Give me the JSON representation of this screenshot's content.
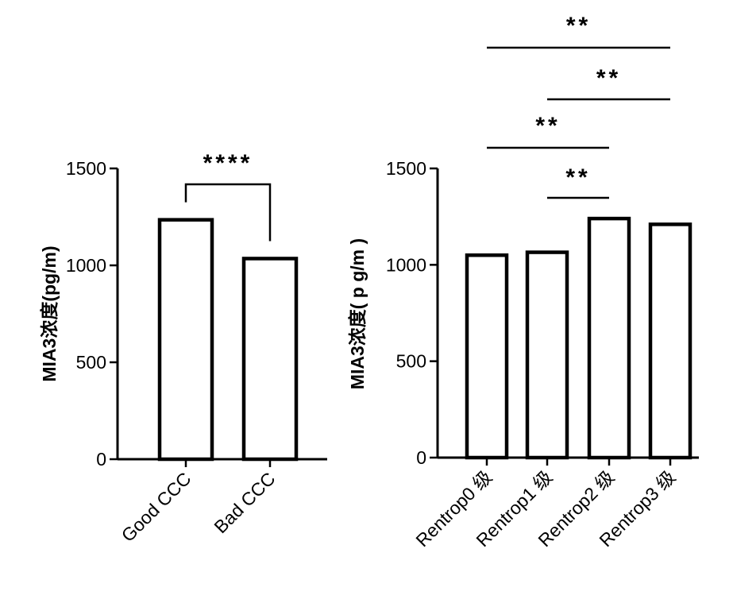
{
  "chart_data": [
    {
      "type": "bar",
      "categories": [
        "Good CCC",
        "Bad CCC"
      ],
      "values": [
        1235,
        1035
      ],
      "ylabel": "MIA3浓度(pg/m)",
      "ylim": [
        0,
        1500
      ],
      "yticks": [
        0,
        500,
        1000,
        1500
      ],
      "significance": [
        {
          "from": 0,
          "to": 1,
          "label": "****"
        }
      ]
    },
    {
      "type": "bar",
      "categories": [
        "Rentrop0 级",
        "Rentrop1 级",
        "Rentrop2 级",
        "Rentrop3 级"
      ],
      "values": [
        1050,
        1065,
        1240,
        1210
      ],
      "ylabel": "MIA3浓度( p g/m )",
      "ylim": [
        0,
        1500
      ],
      "yticks": [
        0,
        500,
        1000,
        1500
      ],
      "significance": [
        {
          "from": 1,
          "to": 2,
          "label": "**"
        },
        {
          "from": 0,
          "to": 2,
          "label": "**"
        },
        {
          "from": 1,
          "to": 3,
          "label": "**"
        },
        {
          "from": 0,
          "to": 3,
          "label": "**"
        }
      ]
    }
  ]
}
